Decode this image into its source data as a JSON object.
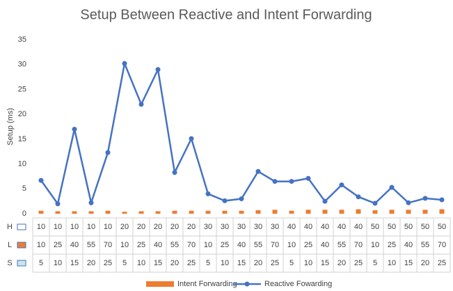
{
  "chart_data": {
    "type": "bar-line",
    "title": "Setup Between Reactive and Intent Forwarding",
    "y_label": "Setup (ms)",
    "ylim": [
      0,
      35
    ],
    "yticks": [
      0,
      5,
      10,
      15,
      20,
      25,
      30,
      35
    ],
    "grid": false,
    "legend": "bottom",
    "series": [
      {
        "name": "Intent Forwarding",
        "type": "bar",
        "color": "#ed7d31",
        "values": [
          0.6,
          0.5,
          0.5,
          0.5,
          0.6,
          0.4,
          0.5,
          0.5,
          0.6,
          0.6,
          0.6,
          0.6,
          0.6,
          0.7,
          0.8,
          0.6,
          0.8,
          0.8,
          0.8,
          0.9,
          0.7,
          0.8,
          0.8,
          0.8,
          0.9
        ]
      },
      {
        "name": "Reactive Fowarding",
        "type": "line",
        "color": "#4472c4",
        "values": [
          6.7,
          2.0,
          17,
          2.2,
          12.3,
          30.2,
          22,
          29,
          8.3,
          15.1,
          4.0,
          2.6,
          3.0,
          8.5,
          6.5,
          6.5,
          7.1,
          2.5,
          5.8,
          3.4,
          2.1,
          5.3,
          2.2,
          3.1,
          2.8
        ]
      }
    ],
    "table": {
      "rows": [
        {
          "label": "H",
          "values": [
            10,
            10,
            10,
            10,
            10,
            20,
            20,
            20,
            20,
            20,
            30,
            30,
            30,
            30,
            30,
            40,
            40,
            40,
            40,
            40,
            50,
            50,
            50,
            50,
            50
          ]
        },
        {
          "label": "L",
          "values": [
            10,
            25,
            40,
            55,
            70,
            10,
            25,
            40,
            55,
            70,
            10,
            25,
            40,
            55,
            70,
            10,
            25,
            40,
            55,
            70,
            10,
            25,
            40,
            55,
            70
          ]
        },
        {
          "label": "S",
          "values": [
            5,
            10,
            15,
            20,
            25,
            5,
            10,
            15,
            20,
            25,
            5,
            10,
            15,
            20,
            25,
            5,
            10,
            15,
            20,
            25,
            5,
            10,
            15,
            20,
            25
          ]
        }
      ]
    }
  }
}
